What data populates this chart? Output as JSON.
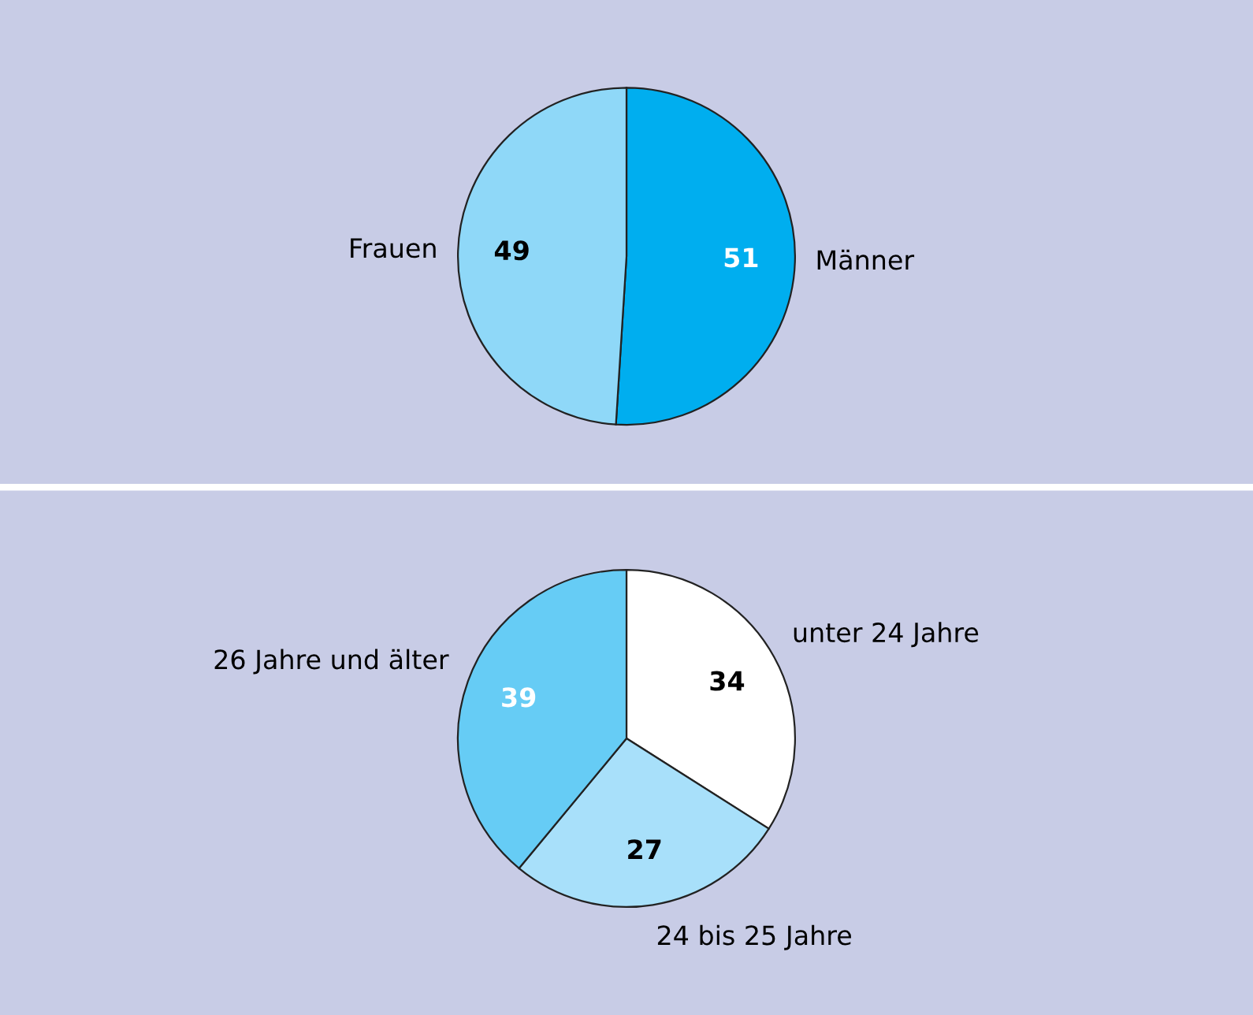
{
  "chart_data": [
    {
      "type": "pie",
      "categories": [
        "Männer",
        "Frauen"
      ],
      "values": [
        51,
        49
      ],
      "colors": [
        "#00aeef",
        "#8fd8f8"
      ],
      "data_labels": true
    },
    {
      "type": "pie",
      "categories": [
        "unter 24 Jahre",
        "24 bis 25 Jahre",
        "26 Jahre und älter"
      ],
      "values": [
        34,
        27,
        39
      ],
      "colors": [
        "#ffffff",
        "#a8e0fa",
        "#66ccf5"
      ],
      "data_labels": true
    }
  ]
}
